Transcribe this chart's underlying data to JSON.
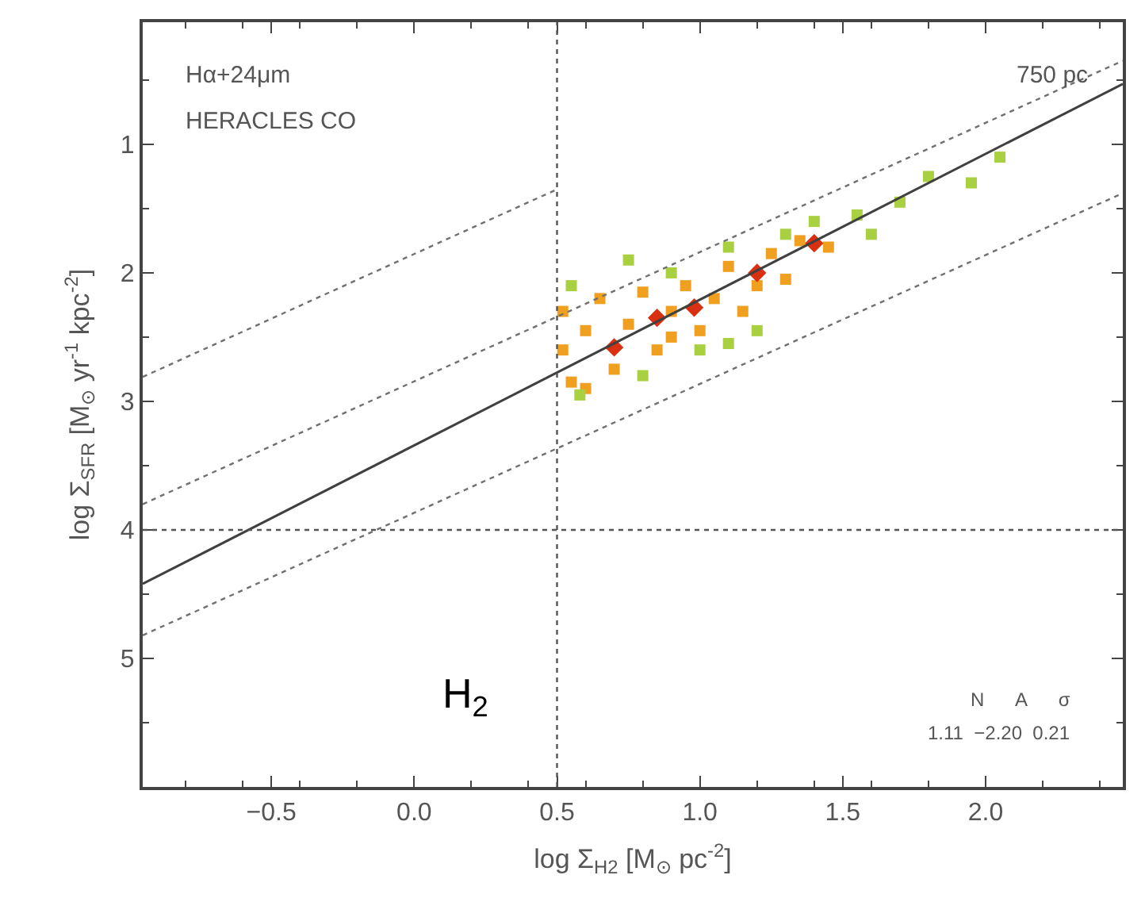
{
  "chart_data": {
    "type": "scatter",
    "xlabel": "log Σ$_{H2}$ [M$_{⊙}$ pc$^{-2}$]",
    "ylabel": "log Σ$_{SFR}$ [M$_{⊙}$ yr$^{-1}$ kpc$^{-2}$]",
    "xlim": [
      -0.95,
      2.48
    ],
    "ylim": [
      6.0,
      0.05
    ],
    "xticks": [
      {
        "value": -0.5,
        "label": "−0.5"
      },
      {
        "value": 0,
        "label": "0.0"
      },
      0.5,
      {
        "value": 1,
        "label": "1.0"
      },
      1.5,
      {
        "value": 2,
        "label": "2.0"
      }
    ],
    "yticks": [
      1,
      2,
      3,
      4,
      5
    ],
    "series": [
      {
        "marker": "square",
        "color": "#f0a020",
        "x": [
          0.52,
          0.52,
          0.55,
          0.6,
          0.65,
          0.7,
          0.75,
          0.8,
          0.85,
          0.9,
          0.95,
          1.0,
          1.05,
          1.1,
          1.15,
          1.2,
          1.25,
          1.3,
          1.35,
          1.45,
          0.6,
          0.9
        ],
        "values": [
          2.3,
          2.6,
          2.85,
          2.45,
          2.2,
          2.75,
          2.4,
          2.15,
          2.6,
          2.3,
          2.1,
          2.45,
          2.2,
          1.95,
          2.3,
          2.1,
          1.85,
          2.05,
          1.75,
          1.8,
          2.9,
          2.5
        ]
      },
      {
        "marker": "square",
        "color": "#a8d040",
        "x": [
          0.55,
          0.58,
          0.75,
          0.9,
          1.0,
          1.1,
          1.2,
          1.3,
          1.4,
          1.55,
          1.6,
          1.7,
          1.8,
          1.95,
          2.05,
          0.8,
          1.1
        ],
        "values": [
          2.1,
          2.95,
          1.9,
          2.0,
          2.6,
          1.8,
          2.45,
          1.7,
          1.6,
          1.55,
          1.7,
          1.45,
          1.25,
          1.3,
          1.1,
          2.8,
          2.55
        ]
      },
      {
        "marker": "diamond",
        "color": "#d83010",
        "x": [
          0.7,
          0.85,
          0.98,
          1.2,
          1.4
        ],
        "values": [
          2.58,
          2.35,
          2.27,
          2.0,
          1.77
        ]
      },
      {
        "type": "line",
        "marker": "none",
        "line_style": "solid",
        "color": "#404040",
        "x": [
          -0.95,
          2.48
        ],
        "values": [
          4.42,
          0.53
        ]
      },
      {
        "type": "line",
        "marker": "none",
        "line_style": "dotted",
        "color": "#707070",
        "x": [
          -0.95,
          0.5
        ],
        "values": [
          2.81,
          1.35
        ]
      },
      {
        "type": "line",
        "marker": "none",
        "line_style": "dotted",
        "color": "#707070",
        "x": [
          -0.95,
          2.48
        ],
        "values": [
          3.8,
          0.35
        ]
      },
      {
        "type": "line",
        "marker": "none",
        "line_style": "dotted",
        "color": "#707070",
        "x": [
          -0.95,
          2.48
        ],
        "values": [
          4.82,
          1.38
        ]
      }
    ],
    "ref_lines": [
      {
        "axis": "x",
        "value": 0.5,
        "line_style": "dotted",
        "color": "#555555"
      },
      {
        "axis": "y",
        "value": 4,
        "line_style": "dotted",
        "color": "#555555"
      }
    ],
    "annotations": [
      "Hα+24μm",
      "HERACLES CO",
      "750 pc",
      "N      A      σ",
      "1.11  −2.20  0.21",
      "H$_{2}$"
    ]
  }
}
